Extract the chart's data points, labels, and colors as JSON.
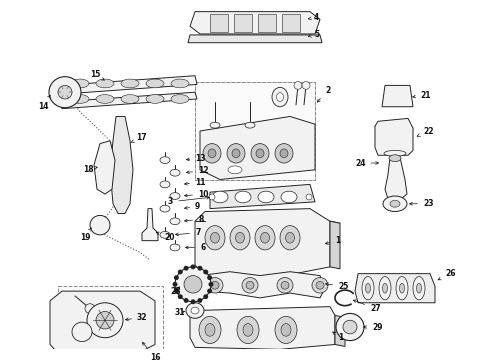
{
  "bg_color": "#ffffff",
  "fig_width": 4.9,
  "fig_height": 3.6,
  "dpi": 100,
  "line_color": "#222222",
  "lw": 0.7,
  "label_fontsize": 5.5,
  "parts_color": "#f0f0f0",
  "parts_edge": "#222222"
}
